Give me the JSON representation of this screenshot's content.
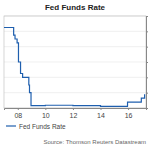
{
  "chart_data": {
    "type": "line",
    "title": "Fed Funds Rate",
    "annotations": [
      "Source: Thomson Reuters Datastream"
    ],
    "x": [
      2007.0,
      2007.6,
      2007.7,
      2007.8,
      2007.95,
      2008.05,
      2008.2,
      2008.35,
      2008.8,
      2008.85,
      2008.96,
      2010.0,
      2012.0,
      2014.0,
      2015.95,
      2015.96,
      2016.95,
      2016.96,
      2017.2
    ],
    "series": [
      {
        "name": "Fed Funds Rate",
        "color": "#1f5fae",
        "values": [
          5.25,
          5.25,
          4.75,
          4.5,
          4.25,
          3.0,
          2.25,
          2.0,
          1.5,
          1.0,
          0.15,
          0.18,
          0.15,
          0.1,
          0.13,
          0.38,
          0.4,
          0.65,
          0.9
        ]
      }
    ],
    "xlim": [
      2007.0,
      2017.3
    ],
    "xticks": [
      {
        "value": 2008,
        "label": "08"
      },
      {
        "value": 2010,
        "label": "10"
      },
      {
        "value": 2012,
        "label": "12"
      },
      {
        "value": 2014,
        "label": "14"
      },
      {
        "value": 2016,
        "label": "16"
      }
    ],
    "ylim": [
      0,
      6
    ],
    "yticks": [
      0,
      1,
      2,
      3,
      4,
      5,
      6
    ],
    "grid": true,
    "tick_labels": "x",
    "legend": "bottom"
  }
}
